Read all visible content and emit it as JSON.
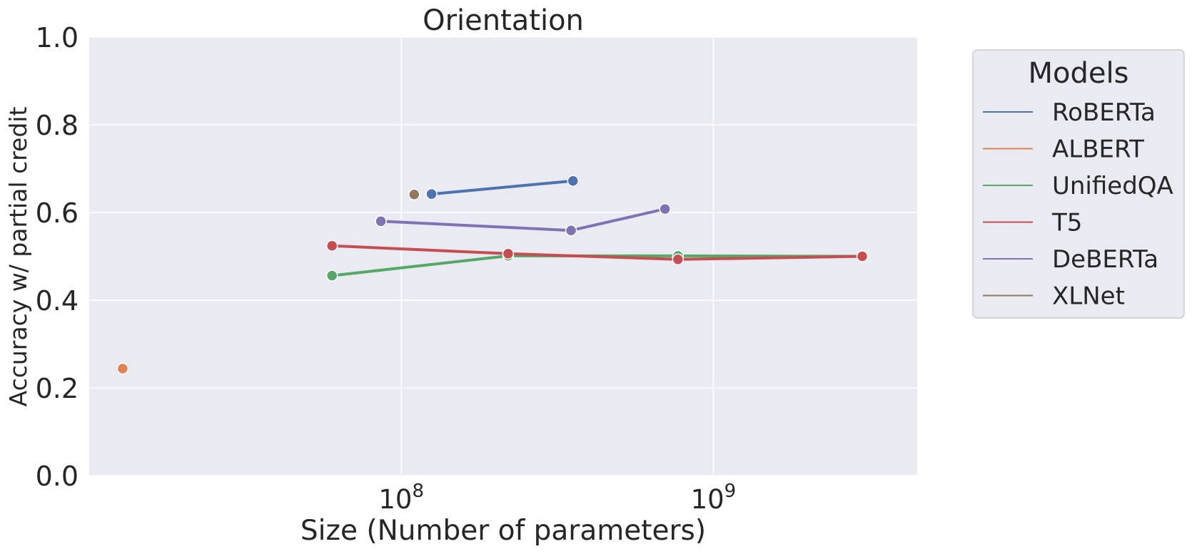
{
  "chart_data": {
    "type": "line",
    "title": "Orientation",
    "xlabel": "Size (Number of parameters)",
    "ylabel": "Accuracy w/ partial credit",
    "xscale": "log",
    "xlim": [
      10000000,
      4500000000
    ],
    "ylim": [
      0.0,
      1.0
    ],
    "x_ticks": [
      {
        "value": 100000000,
        "base": "10",
        "exp": "8"
      },
      {
        "value": 1000000000,
        "base": "10",
        "exp": "9"
      }
    ],
    "y_ticks": [
      {
        "value": 0.0,
        "label": "0.0"
      },
      {
        "value": 0.2,
        "label": "0.2"
      },
      {
        "value": 0.4,
        "label": "0.4"
      },
      {
        "value": 0.6,
        "label": "0.6"
      },
      {
        "value": 0.8,
        "label": "0.8"
      },
      {
        "value": 1.0,
        "label": "1.0"
      }
    ],
    "grid": true,
    "legend": {
      "title": "Models",
      "placement": "outside-right"
    },
    "series": [
      {
        "name": "RoBERTa",
        "color": "#4c72b0",
        "points": [
          [
            125000000,
            0.642
          ],
          [
            355000000,
            0.672
          ]
        ]
      },
      {
        "name": "ALBERT",
        "color": "#dd8452",
        "points": [
          [
            12800000,
            0.244
          ]
        ]
      },
      {
        "name": "UnifiedQA",
        "color": "#55a868",
        "points": [
          [
            60000000,
            0.456
          ],
          [
            220000000,
            0.501
          ],
          [
            770000000,
            0.501
          ],
          [
            3000000000,
            0.5
          ]
        ]
      },
      {
        "name": "T5",
        "color": "#c44e52",
        "points": [
          [
            60000000,
            0.524
          ],
          [
            220000000,
            0.506
          ],
          [
            770000000,
            0.493
          ],
          [
            3000000000,
            0.5
          ]
        ]
      },
      {
        "name": "DeBERTa",
        "color": "#8172b3",
        "points": [
          [
            86000000,
            0.58
          ],
          [
            350000000,
            0.559
          ],
          [
            700000000,
            0.608
          ]
        ]
      },
      {
        "name": "XLNet",
        "color": "#937860",
        "points": [
          [
            110000000,
            0.641
          ]
        ]
      }
    ]
  }
}
